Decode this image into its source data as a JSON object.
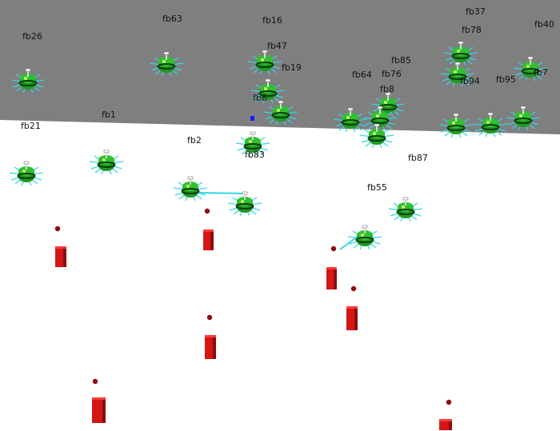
{
  "colors": {
    "ground_far": "#7f7f7f",
    "ground_near": "#ffffff",
    "robot_body": "#1f9b1f",
    "robot_top": "#2fc12f",
    "robot_ring": "#0f3d0f",
    "sensor_rays": "#33d6e6",
    "obstacle": "#d41616",
    "obstacle_dark": "#8e0c0c",
    "target": "#1a1aff",
    "label": "#111111"
  },
  "robot_labels": [
    "fb63",
    "fb16",
    "fb37",
    "fb40",
    "fb26",
    "fb78",
    "fb47",
    "fb19",
    "fb85",
    "fb64",
    "fb76",
    "fb8",
    "fb94",
    "fb95",
    "fb7",
    "fb6",
    "fb1",
    "fb21",
    "fb2",
    "fb83",
    "fb87",
    "fb55"
  ]
}
